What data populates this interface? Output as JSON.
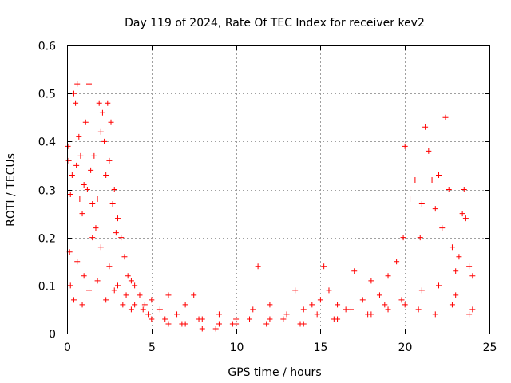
{
  "chart_data": {
    "type": "scatter",
    "title": "Day 119 of 2024, Rate Of TEC Index for receiver kev2",
    "xlabel": "GPS time / hours",
    "ylabel": "ROTI / TECUs",
    "xlim": [
      0,
      25
    ],
    "ylim": [
      0,
      0.6
    ],
    "xticks": [
      0,
      5,
      10,
      15,
      20,
      25
    ],
    "xtick_labels": [
      "0",
      "5",
      "10",
      "15",
      "20",
      "25"
    ],
    "yticks": [
      0,
      0.1,
      0.2,
      0.3,
      0.4,
      0.5,
      0.6
    ],
    "ytick_labels": [
      "0",
      "0.1",
      "0.2",
      "0.3",
      "0.4",
      "0.5",
      "0.6"
    ],
    "grid": true,
    "marker": "plus",
    "color": "#ff0000",
    "series": [
      {
        "name": "ROTI",
        "x": [
          0.05,
          0.1,
          0.15,
          0.2,
          0.3,
          0.4,
          0.5,
          0.55,
          0.6,
          0.7,
          0.75,
          0.8,
          0.9,
          1.0,
          1.1,
          1.2,
          1.3,
          1.4,
          1.5,
          1.6,
          1.7,
          1.8,
          1.9,
          2.0,
          2.1,
          2.2,
          2.3,
          2.4,
          2.5,
          2.6,
          2.7,
          2.8,
          2.9,
          3.0,
          3.2,
          3.4,
          3.6,
          3.8,
          4.0,
          4.3,
          4.6,
          5.0,
          5.5,
          6.0,
          6.5,
          7.0,
          7.5,
          8.0,
          9.0,
          10.0,
          11.0,
          11.3,
          12.0,
          13.0,
          13.5,
          14.0,
          14.5,
          15.0,
          15.2,
          15.5,
          16.0,
          16.5,
          17.0,
          17.5,
          18.0,
          18.5,
          19.0,
          19.5,
          19.9,
          20.0,
          20.3,
          20.6,
          20.9,
          21.0,
          21.2,
          21.4,
          21.6,
          21.8,
          22.0,
          22.2,
          22.4,
          22.6,
          22.8,
          23.0,
          23.2,
          23.4,
          23.5,
          23.6,
          23.8,
          24.0,
          0.2,
          0.6,
          1.0,
          1.5,
          2.0,
          2.5,
          3.0,
          3.5,
          4.0,
          4.5,
          5.0,
          6.0,
          7.0,
          8.0,
          9.0,
          10.0,
          12.0,
          14.0,
          16.0,
          18.0,
          19.0,
          20.0,
          21.0,
          22.0,
          23.0,
          24.0,
          0.4,
          0.9,
          1.3,
          1.8,
          2.3,
          2.8,
          3.3,
          3.8,
          4.8,
          5.8,
          6.8,
          7.8,
          8.8,
          9.8,
          10.8,
          11.8,
          12.8,
          13.8,
          14.8,
          15.8,
          16.8,
          17.8,
          18.8,
          19.8,
          20.8,
          21.8,
          22.8,
          23.8
        ],
        "y": [
          0.39,
          0.36,
          0.17,
          0.29,
          0.33,
          0.5,
          0.48,
          0.35,
          0.52,
          0.41,
          0.28,
          0.37,
          0.25,
          0.31,
          0.44,
          0.3,
          0.52,
          0.34,
          0.27,
          0.37,
          0.22,
          0.28,
          0.48,
          0.42,
          0.46,
          0.4,
          0.33,
          0.48,
          0.36,
          0.44,
          0.27,
          0.3,
          0.21,
          0.24,
          0.2,
          0.16,
          0.12,
          0.11,
          0.1,
          0.08,
          0.06,
          0.07,
          0.05,
          0.08,
          0.04,
          0.06,
          0.08,
          0.03,
          0.04,
          0.03,
          0.05,
          0.14,
          0.06,
          0.04,
          0.09,
          0.05,
          0.06,
          0.07,
          0.14,
          0.09,
          0.06,
          0.05,
          0.13,
          0.07,
          0.11,
          0.08,
          0.12,
          0.15,
          0.2,
          0.39,
          0.28,
          0.32,
          0.2,
          0.27,
          0.43,
          0.38,
          0.32,
          0.26,
          0.33,
          0.22,
          0.45,
          0.3,
          0.18,
          0.13,
          0.16,
          0.25,
          0.3,
          0.24,
          0.14,
          0.12,
          0.1,
          0.15,
          0.12,
          0.2,
          0.18,
          0.14,
          0.1,
          0.08,
          0.06,
          0.05,
          0.03,
          0.02,
          0.02,
          0.01,
          0.02,
          0.02,
          0.03,
          0.02,
          0.03,
          0.04,
          0.05,
          0.06,
          0.09,
          0.1,
          0.08,
          0.05,
          0.07,
          0.06,
          0.09,
          0.11,
          0.07,
          0.09,
          0.06,
          0.05,
          0.04,
          0.03,
          0.02,
          0.03,
          0.01,
          0.02,
          0.03,
          0.02,
          0.03,
          0.02,
          0.04,
          0.03,
          0.05,
          0.04,
          0.06,
          0.07,
          0.05,
          0.04,
          0.06,
          0.04
        ]
      }
    ]
  }
}
